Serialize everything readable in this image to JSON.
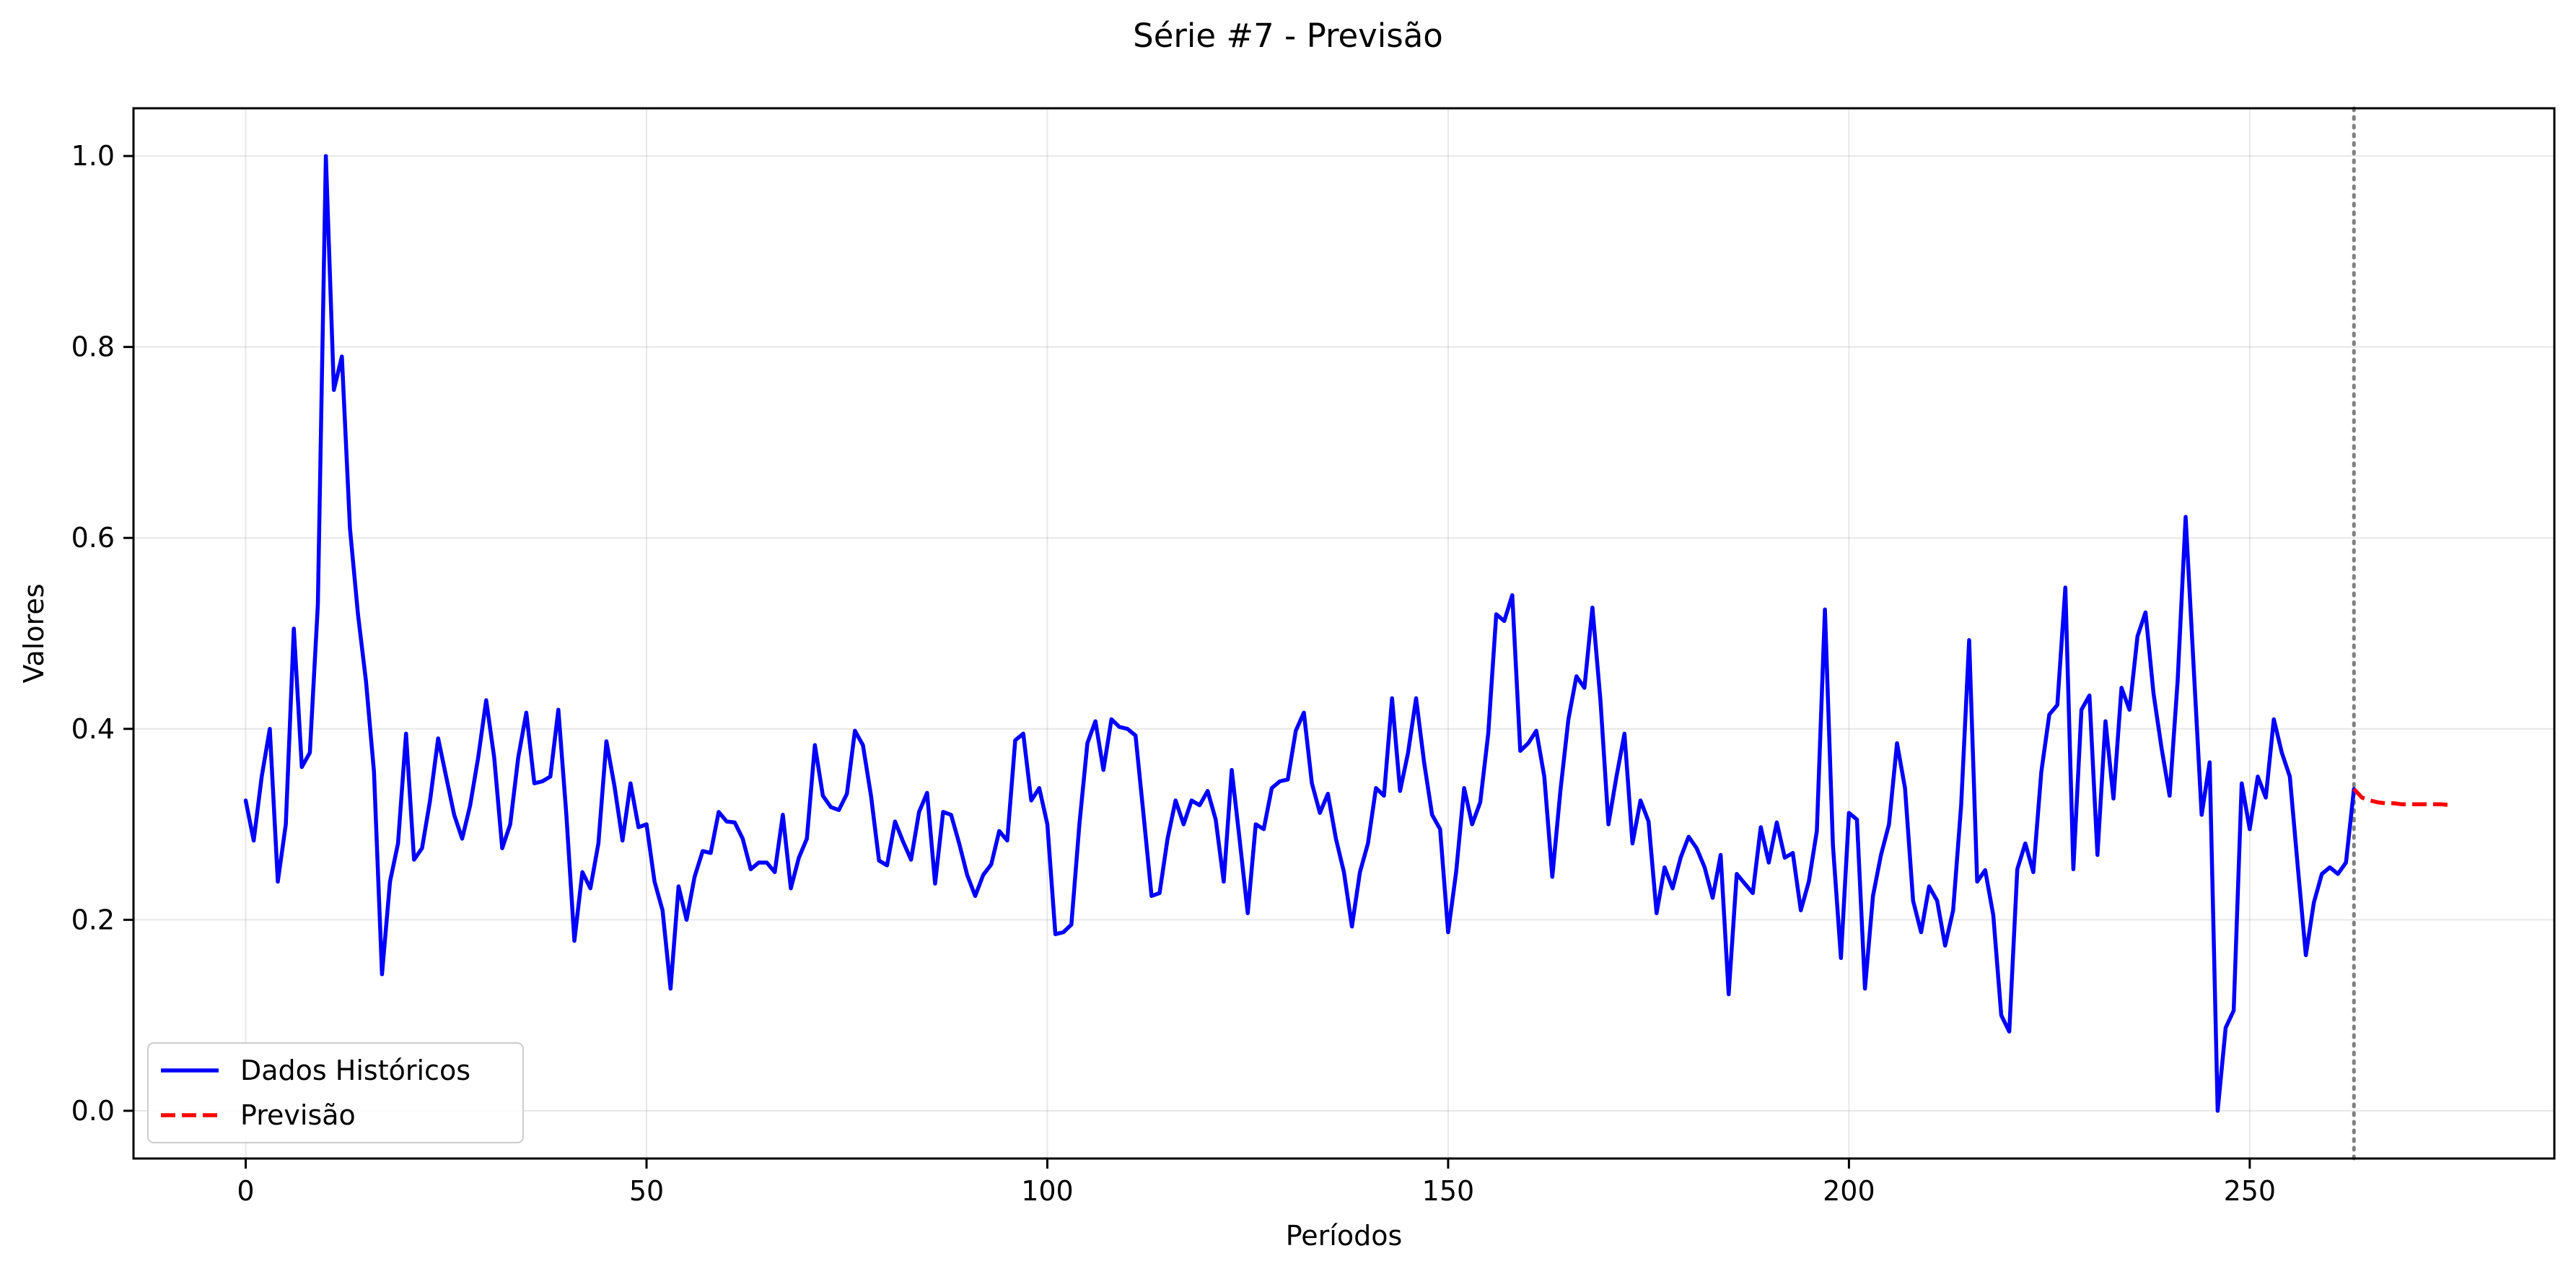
{
  "chart_data": {
    "type": "line",
    "title": "Série #7 - Previsão",
    "xlabel": "Períodos",
    "ylabel": "Valores",
    "xlim": [
      -14,
      288
    ],
    "ylim": [
      -0.05,
      1.05
    ],
    "xticks": [
      0,
      50,
      100,
      150,
      200,
      250
    ],
    "yticks": [
      0.0,
      0.2,
      0.4,
      0.6,
      0.8,
      1.0
    ],
    "xtick_labels": [
      "0",
      "50",
      "100",
      "150",
      "200",
      "250"
    ],
    "ytick_labels": [
      "0.0",
      "0.2",
      "0.4",
      "0.6",
      "0.8",
      "1.0"
    ],
    "grid": true,
    "legend_position": "lower-left",
    "forecast_start_marker": 263,
    "series": [
      {
        "name": "Dados Históricos",
        "color": "#0000ff",
        "style": "solid",
        "x_start": 0,
        "values": [
          0.325,
          0.283,
          0.35,
          0.4,
          0.24,
          0.3,
          0.505,
          0.36,
          0.375,
          0.53,
          1.0,
          0.755,
          0.79,
          0.61,
          0.52,
          0.45,
          0.355,
          0.143,
          0.24,
          0.28,
          0.395,
          0.263,
          0.275,
          0.325,
          0.39,
          0.35,
          0.31,
          0.285,
          0.32,
          0.37,
          0.43,
          0.37,
          0.275,
          0.3,
          0.37,
          0.417,
          0.343,
          0.345,
          0.35,
          0.42,
          0.31,
          0.178,
          0.25,
          0.233,
          0.28,
          0.387,
          0.34,
          0.283,
          0.343,
          0.297,
          0.3,
          0.24,
          0.21,
          0.128,
          0.235,
          0.2,
          0.245,
          0.272,
          0.27,
          0.313,
          0.303,
          0.302,
          0.285,
          0.253,
          0.26,
          0.26,
          0.25,
          0.31,
          0.233,
          0.265,
          0.285,
          0.383,
          0.33,
          0.318,
          0.315,
          0.332,
          0.398,
          0.383,
          0.33,
          0.262,
          0.257,
          0.303,
          0.282,
          0.263,
          0.313,
          0.333,
          0.238,
          0.313,
          0.31,
          0.28,
          0.247,
          0.225,
          0.247,
          0.258,
          0.293,
          0.283,
          0.388,
          0.395,
          0.325,
          0.338,
          0.3,
          0.185,
          0.187,
          0.195,
          0.3,
          0.385,
          0.408,
          0.357,
          0.41,
          0.402,
          0.4,
          0.393,
          0.31,
          0.225,
          0.228,
          0.285,
          0.325,
          0.3,
          0.325,
          0.32,
          0.335,
          0.305,
          0.24,
          0.357,
          0.283,
          0.207,
          0.3,
          0.295,
          0.338,
          0.345,
          0.347,
          0.398,
          0.417,
          0.343,
          0.312,
          0.332,
          0.285,
          0.25,
          0.193,
          0.25,
          0.28,
          0.338,
          0.33,
          0.432,
          0.335,
          0.375,
          0.432,
          0.365,
          0.31,
          0.295,
          0.187,
          0.25,
          0.338,
          0.3,
          0.323,
          0.395,
          0.52,
          0.513,
          0.54,
          0.377,
          0.385,
          0.398,
          0.35,
          0.245,
          0.335,
          0.41,
          0.455,
          0.443,
          0.527,
          0.43,
          0.3,
          0.35,
          0.395,
          0.28,
          0.325,
          0.303,
          0.207,
          0.255,
          0.233,
          0.265,
          0.287,
          0.275,
          0.255,
          0.223,
          0.268,
          0.122,
          0.248,
          0.238,
          0.228,
          0.297,
          0.26,
          0.302,
          0.265,
          0.27,
          0.21,
          0.24,
          0.293,
          0.525,
          0.278,
          0.16,
          0.312,
          0.305,
          0.128,
          0.225,
          0.268,
          0.3,
          0.385,
          0.338,
          0.22,
          0.187,
          0.235,
          0.22,
          0.173,
          0.21,
          0.32,
          0.493,
          0.24,
          0.252,
          0.205,
          0.1,
          0.083,
          0.253,
          0.28,
          0.25,
          0.355,
          0.415,
          0.425,
          0.548,
          0.253,
          0.42,
          0.435,
          0.268,
          0.408,
          0.327,
          0.443,
          0.42,
          0.497,
          0.522,
          0.437,
          0.38,
          0.33,
          0.45,
          0.622,
          0.465,
          0.31,
          0.365,
          0.0,
          0.087,
          0.105,
          0.343,
          0.295,
          0.35,
          0.328,
          0.41,
          0.375,
          0.35,
          0.255,
          0.163,
          0.218,
          0.248,
          0.255,
          0.248,
          0.26,
          0.337
        ]
      },
      {
        "name": "Previsão",
        "color": "#ff0000",
        "style": "dashed",
        "x_start": 263,
        "values": [
          0.337,
          0.328,
          0.325,
          0.323,
          0.322,
          0.322,
          0.321,
          0.321,
          0.321,
          0.321,
          0.321,
          0.321,
          0.32
        ]
      }
    ]
  }
}
